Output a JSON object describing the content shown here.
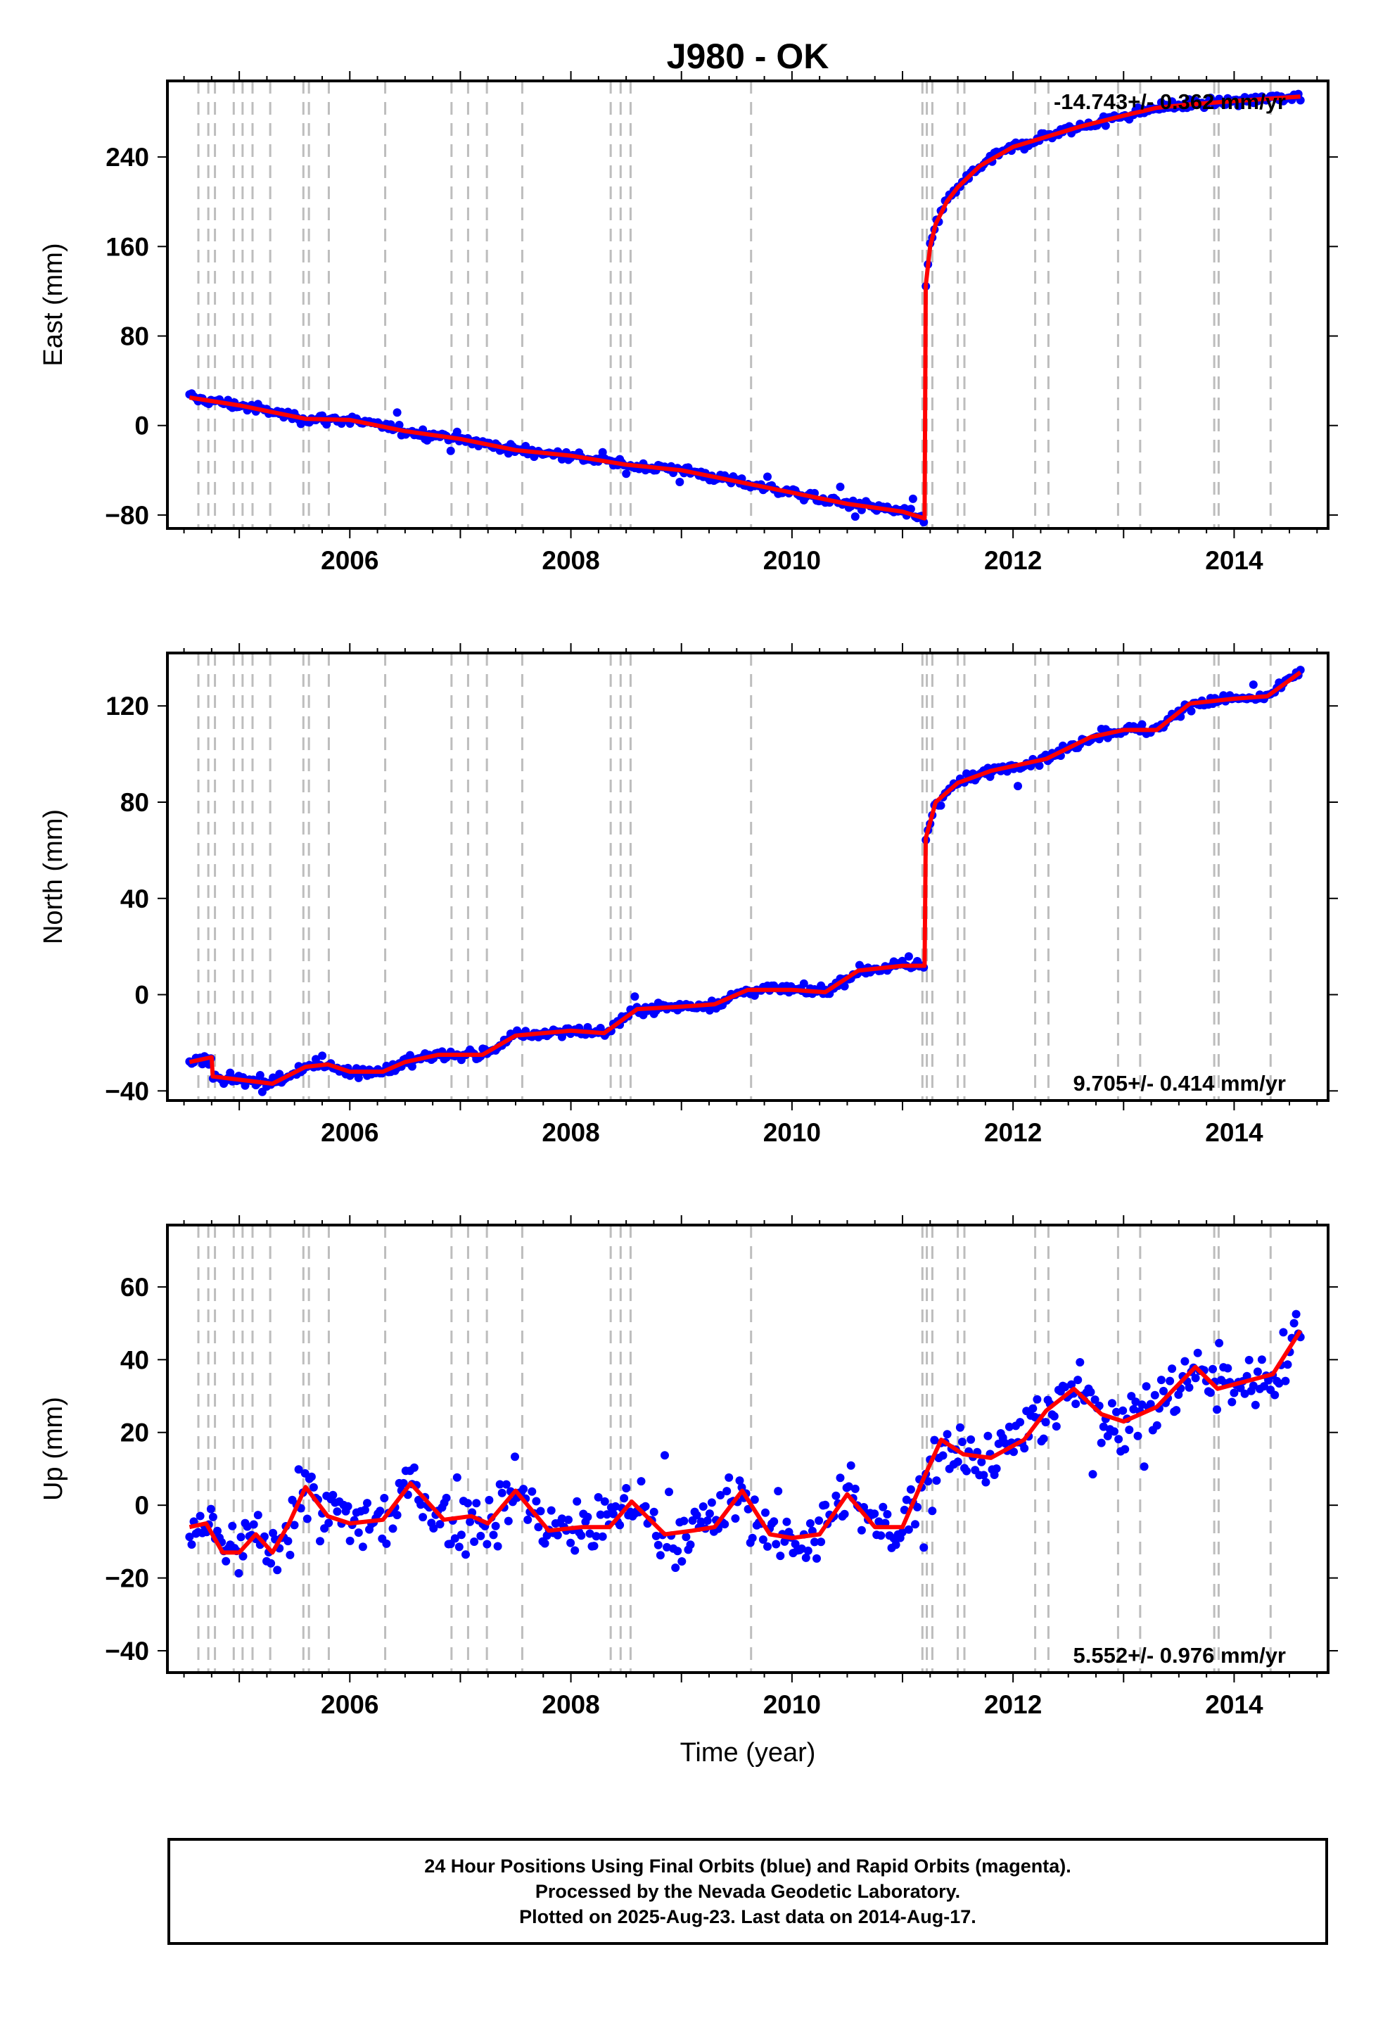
{
  "chart_data": [
    {
      "type": "scatter",
      "title": "J980 - OK",
      "ylabel": "East (mm)",
      "xlabel": "",
      "xlim": [
        2004.35,
        2014.85
      ],
      "ylim": [
        -92,
        308
      ],
      "xticks": [
        2006,
        2008,
        2010,
        2012,
        2014
      ],
      "yticks": [
        -80,
        0,
        80,
        160,
        240
      ],
      "grid": false,
      "rate_text": "-14.743+/- 0.362 mm/yr",
      "rate_position": "top-right",
      "noise": 3,
      "series": [
        {
          "color": "#0000ff",
          "marker": "dot",
          "x": [
            2004.55,
            2005.0,
            2005.6,
            2006.0,
            2006.5,
            2007.0,
            2007.5,
            2008.0,
            2008.5,
            2009.0,
            2009.5,
            2010.0,
            2010.5,
            2011.0,
            2011.2,
            2011.21,
            2011.25,
            2011.3,
            2011.4,
            2011.5,
            2011.7,
            2012.0,
            2012.3,
            2012.6,
            2013.0,
            2013.3,
            2013.6,
            2014.0,
            2014.3,
            2014.6
          ],
          "y": [
            25,
            18,
            6,
            5,
            -5,
            -12,
            -22,
            -27,
            -35,
            -40,
            -50,
            -60,
            -70,
            -77,
            -83,
            125,
            160,
            180,
            200,
            213,
            232,
            249,
            258,
            267,
            277,
            284,
            287,
            290,
            292,
            294
          ]
        },
        {
          "color": "#ff0000",
          "marker": "line",
          "x": [
            2004.55,
            2005.0,
            2005.6,
            2006.0,
            2006.5,
            2007.0,
            2007.5,
            2008.0,
            2008.5,
            2009.0,
            2009.5,
            2010.0,
            2010.5,
            2011.0,
            2011.2,
            2011.21,
            2011.25,
            2011.3,
            2011.4,
            2011.5,
            2011.7,
            2012.0,
            2012.3,
            2012.6,
            2013.0,
            2013.3,
            2013.6,
            2014.0,
            2014.3,
            2014.6
          ],
          "y": [
            25,
            18,
            6,
            5,
            -5,
            -12,
            -22,
            -27,
            -35,
            -40,
            -50,
            -60,
            -70,
            -77,
            -83,
            125,
            160,
            180,
            200,
            213,
            232,
            249,
            258,
            267,
            277,
            284,
            287,
            290,
            292,
            294
          ]
        }
      ]
    },
    {
      "type": "scatter",
      "title": "",
      "ylabel": "North (mm)",
      "xlabel": "",
      "xlim": [
        2004.35,
        2014.85
      ],
      "ylim": [
        -44,
        142
      ],
      "xticks": [
        2006,
        2008,
        2010,
        2012,
        2014
      ],
      "yticks": [
        -40,
        0,
        40,
        80,
        120
      ],
      "grid": false,
      "rate_text": "9.705+/- 0.414 mm/yr",
      "rate_position": "bottom-right",
      "noise": 1.5,
      "series": [
        {
          "color": "#0000ff",
          "marker": "dot",
          "x": [
            2004.55,
            2004.75,
            2004.76,
            2005.3,
            2005.6,
            2005.8,
            2006.0,
            2006.3,
            2006.5,
            2006.8,
            2007.2,
            2007.5,
            2008.0,
            2008.3,
            2008.6,
            2009.0,
            2009.3,
            2009.6,
            2010.0,
            2010.3,
            2010.6,
            2011.0,
            2011.2,
            2011.21,
            2011.3,
            2011.5,
            2011.8,
            2012.0,
            2012.3,
            2012.7,
            2013.0,
            2013.3,
            2013.6,
            2014.0,
            2014.3,
            2014.6
          ],
          "y": [
            -28,
            -26,
            -34,
            -37,
            -30,
            -29,
            -32,
            -32,
            -28,
            -25,
            -25,
            -17,
            -15,
            -16,
            -6,
            -5,
            -4,
            2,
            2,
            1,
            10,
            12,
            12,
            65,
            80,
            88,
            93,
            95,
            98,
            107,
            110,
            110,
            121,
            123,
            124,
            134
          ]
        },
        {
          "color": "#ff0000",
          "marker": "line",
          "x": [
            2004.55,
            2004.75,
            2004.76,
            2005.3,
            2005.6,
            2005.8,
            2006.0,
            2006.3,
            2006.5,
            2006.8,
            2007.2,
            2007.5,
            2008.0,
            2008.3,
            2008.6,
            2009.0,
            2009.3,
            2009.6,
            2010.0,
            2010.3,
            2010.6,
            2011.0,
            2011.2,
            2011.21,
            2011.3,
            2011.5,
            2011.8,
            2012.0,
            2012.3,
            2012.7,
            2013.0,
            2013.3,
            2013.6,
            2014.0,
            2014.3,
            2014.6
          ],
          "y": [
            -28,
            -26,
            -34,
            -37,
            -30,
            -29,
            -32,
            -32,
            -28,
            -25,
            -25,
            -17,
            -15,
            -16,
            -6,
            -5,
            -4,
            2,
            2,
            1,
            10,
            12,
            12,
            65,
            80,
            88,
            93,
            95,
            98,
            107,
            110,
            110,
            121,
            123,
            124,
            134
          ]
        }
      ]
    },
    {
      "type": "scatter",
      "title": "",
      "ylabel": "Up (mm)",
      "xlabel": "Time (year)",
      "xlim": [
        2004.35,
        2014.85
      ],
      "ylim": [
        -46,
        77
      ],
      "xticks": [
        2006,
        2008,
        2010,
        2012,
        2014
      ],
      "yticks": [
        -40,
        -20,
        0,
        20,
        40,
        60
      ],
      "grid": false,
      "rate_text": "5.552+/- 0.976 mm/yr",
      "rate_position": "bottom-right",
      "noise": 6,
      "series": [
        {
          "color": "#0000ff",
          "marker": "dot",
          "x": [
            2004.55,
            2004.7,
            2004.85,
            2005.0,
            2005.15,
            2005.3,
            2005.45,
            2005.6,
            2005.8,
            2006.0,
            2006.3,
            2006.55,
            2006.85,
            2007.1,
            2007.25,
            2007.5,
            2007.8,
            2008.1,
            2008.35,
            2008.55,
            2008.85,
            2009.1,
            2009.3,
            2009.55,
            2009.8,
            2010.0,
            2010.25,
            2010.5,
            2010.75,
            2011.0,
            2011.2,
            2011.35,
            2011.55,
            2011.8,
            2012.1,
            2012.3,
            2012.55,
            2012.8,
            2013.0,
            2013.3,
            2013.65,
            2013.85,
            2014.1,
            2014.35,
            2014.6
          ],
          "y": [
            -6,
            -5,
            -13,
            -13,
            -8,
            -13,
            -5,
            5,
            -3,
            -5,
            -4,
            6,
            -4,
            -3,
            -5,
            4,
            -7,
            -6,
            -6,
            1,
            -8,
            -7,
            -6,
            4,
            -8,
            -9,
            -8,
            3,
            -6,
            -6,
            8,
            18,
            14,
            13,
            18,
            26,
            32,
            25,
            23,
            27,
            38,
            32,
            34,
            36,
            48
          ]
        },
        {
          "color": "#ff0000",
          "marker": "line",
          "x": [
            2004.55,
            2004.7,
            2004.85,
            2005.0,
            2005.15,
            2005.3,
            2005.45,
            2005.6,
            2005.8,
            2006.0,
            2006.3,
            2006.55,
            2006.85,
            2007.1,
            2007.25,
            2007.5,
            2007.8,
            2008.1,
            2008.35,
            2008.55,
            2008.85,
            2009.1,
            2009.3,
            2009.55,
            2009.8,
            2010.0,
            2010.25,
            2010.5,
            2010.75,
            2011.0,
            2011.2,
            2011.35,
            2011.55,
            2011.8,
            2012.1,
            2012.3,
            2012.55,
            2012.8,
            2013.0,
            2013.3,
            2013.65,
            2013.85,
            2014.1,
            2014.35,
            2014.6
          ],
          "y": [
            -6,
            -5,
            -13,
            -13,
            -8,
            -13,
            -5,
            5,
            -3,
            -5,
            -4,
            6,
            -4,
            -3,
            -5,
            4,
            -7,
            -6,
            -6,
            1,
            -8,
            -7,
            -6,
            4,
            -8,
            -9,
            -8,
            3,
            -6,
            -6,
            8,
            18,
            14,
            13,
            18,
            26,
            32,
            25,
            23,
            27,
            38,
            32,
            34,
            36,
            48
          ]
        }
      ]
    }
  ],
  "event_lines_years": [
    2004.63,
    2004.72,
    2004.78,
    2004.95,
    2005.03,
    2005.12,
    2005.28,
    2005.58,
    2005.63,
    2005.81,
    2006.32,
    2006.92,
    2007.07,
    2007.24,
    2007.56,
    2008.36,
    2008.45,
    2008.54,
    2009.63,
    2011.18,
    2011.22,
    2011.27,
    2011.5,
    2011.56,
    2012.2,
    2012.32,
    2012.95,
    2013.15,
    2013.82,
    2013.86,
    2014.33
  ],
  "footer": {
    "line1": "24 Hour Positions Using Final Orbits (blue) and Rapid Orbits (magenta).",
    "line2": "Processed by the Nevada Geodetic Laboratory.",
    "line3": "Plotted on 2025-Aug-23. Last data on 2014-Aug-17."
  }
}
